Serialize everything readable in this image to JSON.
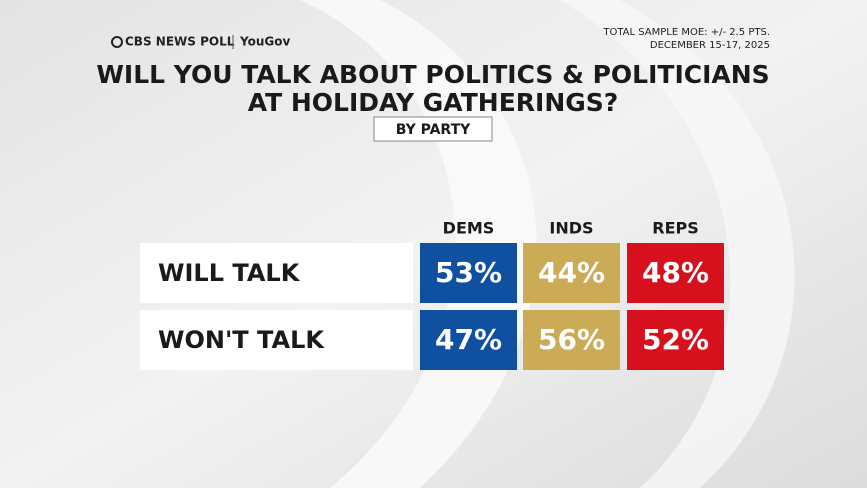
{
  "chart_data": {
    "type": "table",
    "brand": "CBS NEWS POLL",
    "partner": "YouGov",
    "moe_note": "TOTAL SAMPLE MOE: +/- 2.5 PTS.",
    "date_note": "DECEMBER 15-17, 2025",
    "title": [
      "WILL YOU TALK ABOUT POLITICS & POLITICIANS",
      "AT HOLIDAY GATHERINGS?"
    ],
    "subtitle": "BY PARTY",
    "categories": [
      "WILL TALK",
      "WON'T TALK"
    ],
    "series": [
      {
        "name": "DEMS",
        "color": "#0f50a0",
        "values": [
          53,
          47
        ],
        "value_labels": [
          "53%",
          "47%"
        ]
      },
      {
        "name": "INDS",
        "color": "#cbab55",
        "values": [
          44,
          56
        ],
        "value_labels": [
          "44%",
          "56%"
        ]
      },
      {
        "name": "REPS",
        "color": "#d7101d",
        "values": [
          48,
          52
        ],
        "value_labels": [
          "48%",
          "52%"
        ]
      }
    ]
  }
}
